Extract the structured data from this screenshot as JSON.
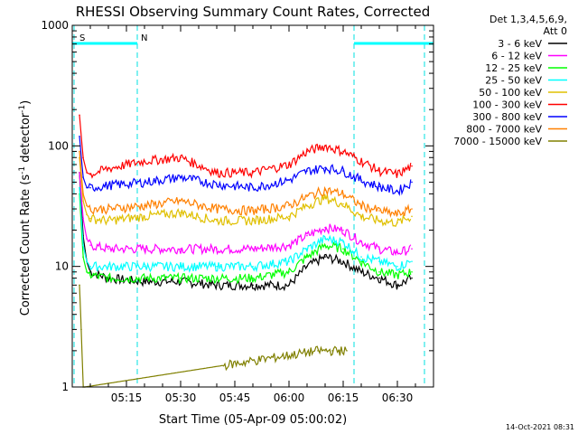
{
  "chart_data": {
    "type": "line",
    "title": "RHESSI Observing Summary Count Rates, Corrected",
    "xlabel": "Start Time (05-Apr-09 05:00:02)",
    "ylabel_main": "Corrected Count Rate (s",
    "ylabel_sup1": "-1",
    "ylabel_mid": " detector",
    "ylabel_sup2": "-1",
    "ylabel_end": ")",
    "x_unit": "minutes after 05:00:02",
    "xlim": [
      0,
      100
    ],
    "ylim": [
      1,
      1000
    ],
    "y_scale": "log",
    "grid": false,
    "x_ticks": [
      {
        "value": 15,
        "label": "05:15"
      },
      {
        "value": 30,
        "label": "05:30"
      },
      {
        "value": 45,
        "label": "05:45"
      },
      {
        "value": 60,
        "label": "06:00"
      },
      {
        "value": 75,
        "label": "06:15"
      },
      {
        "value": 90,
        "label": "06:30"
      }
    ],
    "y_ticks": [
      {
        "value": 1,
        "label": "1"
      },
      {
        "value": 10,
        "label": "10"
      },
      {
        "value": 100,
        "label": "100"
      },
      {
        "value": 1000,
        "label": "1000"
      }
    ],
    "legend_header": [
      "Det 1,3,4,5,6,9,",
      "Att 0"
    ],
    "legend_position": "top-right",
    "series": [
      {
        "name": "3 - 6 keV",
        "color": "#000000",
        "x": [
          2,
          3,
          4,
          5,
          10,
          20,
          30,
          40,
          50,
          60,
          65,
          70,
          75,
          80,
          85,
          90,
          94
        ],
        "y": [
          60,
          18,
          11,
          9,
          8,
          7.5,
          7.5,
          7,
          7,
          7,
          10,
          12,
          11,
          9,
          8,
          7,
          8
        ]
      },
      {
        "name": "6 - 12 keV",
        "color": "#ff00ff",
        "x": [
          2,
          3,
          4,
          5,
          10,
          20,
          30,
          40,
          50,
          60,
          65,
          70,
          75,
          80,
          85,
          90,
          94
        ],
        "y": [
          60,
          25,
          17,
          15,
          14,
          14,
          14,
          14,
          14,
          15,
          18,
          21,
          20,
          16,
          14,
          13,
          14
        ]
      },
      {
        "name": "12 - 25 keV",
        "color": "#00ff00",
        "x": [
          2,
          3,
          4,
          5,
          10,
          20,
          30,
          40,
          50,
          60,
          65,
          70,
          75,
          80,
          85,
          90,
          94
        ],
        "y": [
          40,
          12,
          9,
          8.5,
          8,
          8,
          8,
          8,
          8,
          9,
          12,
          15,
          14,
          11,
          9,
          8.5,
          9
        ]
      },
      {
        "name": "25 - 50 keV",
        "color": "#00ffff",
        "x": [
          2,
          3,
          4,
          5,
          10,
          20,
          30,
          40,
          50,
          60,
          65,
          70,
          75,
          80,
          85,
          90,
          94
        ],
        "y": [
          45,
          15,
          11,
          10,
          10,
          10,
          10,
          10,
          10,
          11,
          14,
          17,
          16,
          12,
          11,
          10,
          11
        ]
      },
      {
        "name": "50 - 100 keV",
        "color": "#e0c000",
        "x": [
          2,
          3,
          4,
          5,
          10,
          20,
          30,
          40,
          50,
          60,
          65,
          70,
          75,
          80,
          85,
          90,
          94
        ],
        "y": [
          80,
          35,
          27,
          25,
          24,
          26,
          28,
          24,
          24,
          26,
          32,
          37,
          33,
          26,
          24,
          23,
          26
        ]
      },
      {
        "name": "100 - 300 keV",
        "color": "#ff0000",
        "x": [
          2,
          3,
          4,
          5,
          10,
          20,
          30,
          40,
          50,
          60,
          65,
          70,
          75,
          80,
          85,
          90,
          94
        ],
        "y": [
          180,
          80,
          60,
          58,
          65,
          75,
          80,
          60,
          60,
          70,
          90,
          100,
          90,
          75,
          62,
          58,
          68
        ]
      },
      {
        "name": "300 - 800 keV",
        "color": "#0000ff",
        "x": [
          2,
          3,
          4,
          5,
          10,
          20,
          30,
          40,
          50,
          60,
          65,
          70,
          75,
          80,
          85,
          90,
          94
        ],
        "y": [
          120,
          55,
          45,
          45,
          47,
          50,
          55,
          48,
          45,
          52,
          62,
          66,
          62,
          52,
          46,
          42,
          50
        ]
      },
      {
        "name": "800 - 7000 keV",
        "color": "#ff8000",
        "x": [
          2,
          3,
          4,
          5,
          10,
          20,
          30,
          40,
          50,
          60,
          65,
          70,
          75,
          80,
          85,
          90,
          94
        ],
        "y": [
          90,
          40,
          32,
          30,
          30,
          32,
          35,
          30,
          29,
          32,
          38,
          43,
          40,
          32,
          29,
          27,
          30
        ]
      },
      {
        "name": "7000 - 15000 keV",
        "color": "#808000",
        "x": [
          2,
          2.5,
          3,
          3.5,
          68,
          70,
          72,
          74,
          76
        ],
        "y": [
          7,
          3,
          1,
          1,
          2,
          2,
          2,
          2,
          2
        ]
      }
    ],
    "attenuator_flags": [
      {
        "label": "S",
        "x_start": 0,
        "x_end": 1,
        "color": "#ff8000"
      },
      {
        "label": "N",
        "x_start": 0,
        "x_end": 18,
        "color": "#00ffff"
      },
      {
        "label": "",
        "x_start": 78,
        "x_end": 100,
        "color": "#00ffff"
      }
    ],
    "vertical_markers": [
      0.5,
      18,
      78,
      97.5
    ],
    "marker_color": "#00e0e0",
    "footer_timestamp": "14-Oct-2021 08:31"
  }
}
